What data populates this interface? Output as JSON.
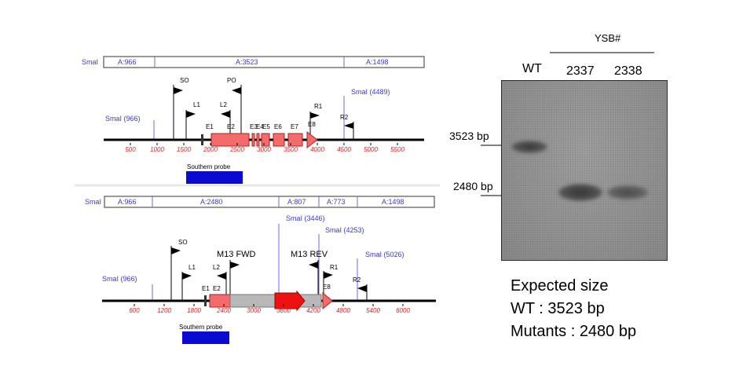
{
  "maps": [
    {
      "segments_title": "SmaI",
      "segments": [
        "A:966",
        "A:3523",
        "A:1498"
      ],
      "ruler_ticks": [
        "500",
        "1000",
        "1500",
        "2000",
        "2500",
        "3000",
        "3500",
        "4000",
        "4500",
        "5000",
        "5500"
      ],
      "site_left": "SmaI (966)",
      "site_right": "SmaI (4489)",
      "primers": [
        "SO",
        "PO",
        "L1",
        "L2",
        "R1",
        "R2"
      ],
      "exons": [
        "E1",
        "E2",
        "E3",
        "E4",
        "E5",
        "E6",
        "E7",
        "E8"
      ],
      "probe_label": "Southern probe"
    },
    {
      "segments_title": "SmaI",
      "segments": [
        "A:966",
        "A:2480",
        "A:807",
        "A:773",
        "A:1498"
      ],
      "ruler_ticks": [
        "600",
        "1200",
        "1800",
        "2400",
        "3000",
        "3600",
        "4200",
        "4800",
        "5400",
        "6000"
      ],
      "site_left": "SmaI (966)",
      "site_mid1": "SmaI (3446)",
      "site_mid2": "SmaI (4253)",
      "site_right": "SmaI (5026)",
      "primers": [
        "SO",
        "L1",
        "L2",
        "R1",
        "R2"
      ],
      "m13_fwd": "M13 FWD",
      "m13_rev": "M13 REV",
      "exons": [
        "E1",
        "E2",
        "E8"
      ],
      "probe_label": "Southern probe"
    }
  ],
  "gel": {
    "group_label": "YSB#",
    "lanes": [
      "WT",
      "2337",
      "2338"
    ],
    "markers": [
      "3523 bp",
      "2480 bp"
    ]
  },
  "summary": {
    "line1": "Expected size",
    "line2": "WT : 3523 bp",
    "line3": "Mutants : 2480 bp"
  },
  "colors": {
    "exon_fill": "#f46b6b",
    "exon_stroke": "#b02020",
    "cassette_fill": "#b8b8b8",
    "arrow_red": "#ee1111",
    "probe_fill": "#0a0ad0",
    "site_text": "#3a3ad8",
    "tick_text": "#e02020"
  }
}
